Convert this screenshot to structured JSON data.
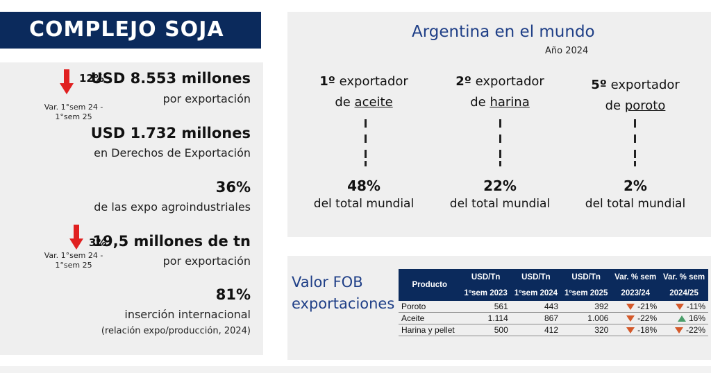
{
  "title": "COMPLEJO SOJA",
  "left": {
    "block1": {
      "change": "12%",
      "var_line1": "Var.  1°sem 24 -",
      "var_line2": "1°sem 25",
      "value": "USD 8.553 millones",
      "label": "por exportación"
    },
    "block2": {
      "value": "USD 1.732 millones",
      "label": "en Derechos de Exportación"
    },
    "block3": {
      "value": "36%",
      "label": "de las expo agroindustriales"
    },
    "block4": {
      "change": "3%",
      "var_line1": "Var.  1°sem 24 -",
      "var_line2": "1°sem 25",
      "value": "19,5 millones de tn",
      "label": "por exportación"
    },
    "block5": {
      "value": "81%",
      "label": "inserción internacional",
      "note": "(relación expo/producción, 2024)"
    }
  },
  "argentina": {
    "title": "Argentina en el mundo",
    "year": "Año 2024",
    "columns": [
      {
        "rank": "1º",
        "word": "exportador",
        "prep": "de",
        "product": "aceite",
        "pct": "48%",
        "label": "del total mundial"
      },
      {
        "rank": "2º",
        "word": "exportador",
        "prep": "de",
        "product": "harina",
        "pct": "22%",
        "label": "del total mundial"
      },
      {
        "rank": "5º",
        "word": "exportador",
        "prep": "de",
        "product": "poroto",
        "pct": "2%",
        "label": "del total mundial"
      }
    ]
  },
  "fob": {
    "title_line1": "Valor FOB",
    "title_line2": "exportaciones",
    "headers": [
      [
        "Producto",
        ""
      ],
      [
        "USD/Tn",
        "1ºsem 2023"
      ],
      [
        "USD/Tn",
        "1ºsem 2024"
      ],
      [
        "USD/Tn",
        "1ºsem 2025"
      ],
      [
        "Var. % sem",
        "2023/24"
      ],
      [
        "Var. % sem",
        "2024/25"
      ]
    ],
    "rows": [
      {
        "product": "Poroto",
        "v2023": "561",
        "v2024": "443",
        "v2025": "392",
        "var1": "-21%",
        "var1_dir": "down",
        "var2": "-11%",
        "var2_dir": "down"
      },
      {
        "product": "Aceite",
        "v2023": "1.114",
        "v2024": "867",
        "v2025": "1.006",
        "var1": "-22%",
        "var1_dir": "down",
        "var2": "16%",
        "var2_dir": "up"
      },
      {
        "product": "Harina y pellet",
        "v2023": "500",
        "v2024": "412",
        "v2025": "320",
        "var1": "-18%",
        "var1_dir": "down",
        "var2": "-22%",
        "var2_dir": "down"
      }
    ]
  },
  "colors": {
    "navy": "#0b2a5c",
    "blue_text": "#1f3f87",
    "arrow_red": "#e02020",
    "tri_down": "#d4592a",
    "tri_up": "#4a9e6a",
    "panel_bg": "#efefef"
  }
}
